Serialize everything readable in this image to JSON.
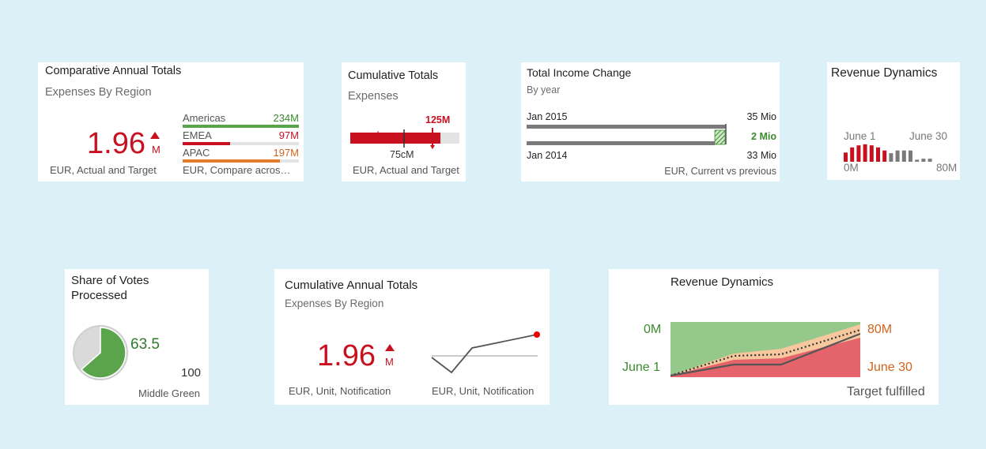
{
  "colors": {
    "background": "#dcf0f8",
    "red": "#c8101f",
    "green": "#5aa44c",
    "orange": "#e27d29",
    "grey": "#7a7a7a"
  },
  "tile1": {
    "title": "Comparative Annual Totals",
    "subtitle": "Expenses By Region",
    "value": "1.96",
    "unit": "M",
    "trend": "up",
    "footer_left": "EUR, Actual and Target",
    "footer_right": "EUR, Compare acros…",
    "bars": [
      {
        "label": "Americas",
        "value": "234M",
        "fraction": 1.0,
        "color": "#5aa44c"
      },
      {
        "label": "EMEA",
        "value": "97M",
        "fraction": 0.41,
        "color": "#c8101f"
      },
      {
        "label": "APAC",
        "value": "197M",
        "fraction": 0.84,
        "color": "#e27d29"
      }
    ]
  },
  "tile2": {
    "title": "Cumulative Totals",
    "subtitle": "Expenses",
    "target_label": "125M",
    "actual_label": "75cM",
    "footer": "EUR, Actual and Target"
  },
  "tile3": {
    "title": "Total Income Change",
    "subtitle": "By year",
    "row1_label": "Jan 2015",
    "row1_value": "35 Mio",
    "delta": "2 Mio",
    "row2_label": "Jan 2014",
    "row2_value": "33 Mio",
    "footer": "EUR, Current vs previous"
  },
  "tile4": {
    "title": "Revenue Dynamics",
    "start_label": "June 1",
    "end_label": "June 30",
    "min_label": "0M",
    "max_label": "80M",
    "columns": [
      {
        "value": 0.45,
        "color": "#c8101f"
      },
      {
        "value": 0.7,
        "color": "#c8101f"
      },
      {
        "value": 0.8,
        "color": "#c8101f"
      },
      {
        "value": 0.85,
        "color": "#c8101f"
      },
      {
        "value": 0.8,
        "color": "#c8101f"
      },
      {
        "value": 0.7,
        "color": "#c8101f"
      },
      {
        "value": 0.55,
        "color": "#c8101f"
      },
      {
        "value": 0.42,
        "color": "#7a7a7a"
      },
      {
        "value": 0.55,
        "color": "#7a7a7a"
      },
      {
        "value": 0.55,
        "color": "#7a7a7a"
      },
      {
        "value": 0.55,
        "color": "#7a7a7a"
      },
      {
        "value": 0.1,
        "color": "#7a7a7a"
      },
      {
        "value": 0.15,
        "color": "#7a7a7a"
      },
      {
        "value": 0.15,
        "color": "#7a7a7a"
      }
    ]
  },
  "tile5": {
    "title_line1": "Share of Votes",
    "title_line2": "Processed",
    "value": "63.5",
    "total": "100",
    "fraction": 0.635,
    "footer": "Middle Green"
  },
  "tile6": {
    "title": "Cumulative Annual Totals",
    "subtitle": "Expenses By Region",
    "value": "1.96",
    "unit": "M",
    "footer_left": "EUR, Unit, Notification",
    "footer_right": "EUR, Unit, Notification"
  },
  "tile7": {
    "title": "Revenue Dynamics",
    "top_left": "0M",
    "top_right": "80M",
    "bottom_left": "June 1",
    "bottom_right": "June 30",
    "footer": "Target fulfilled"
  }
}
